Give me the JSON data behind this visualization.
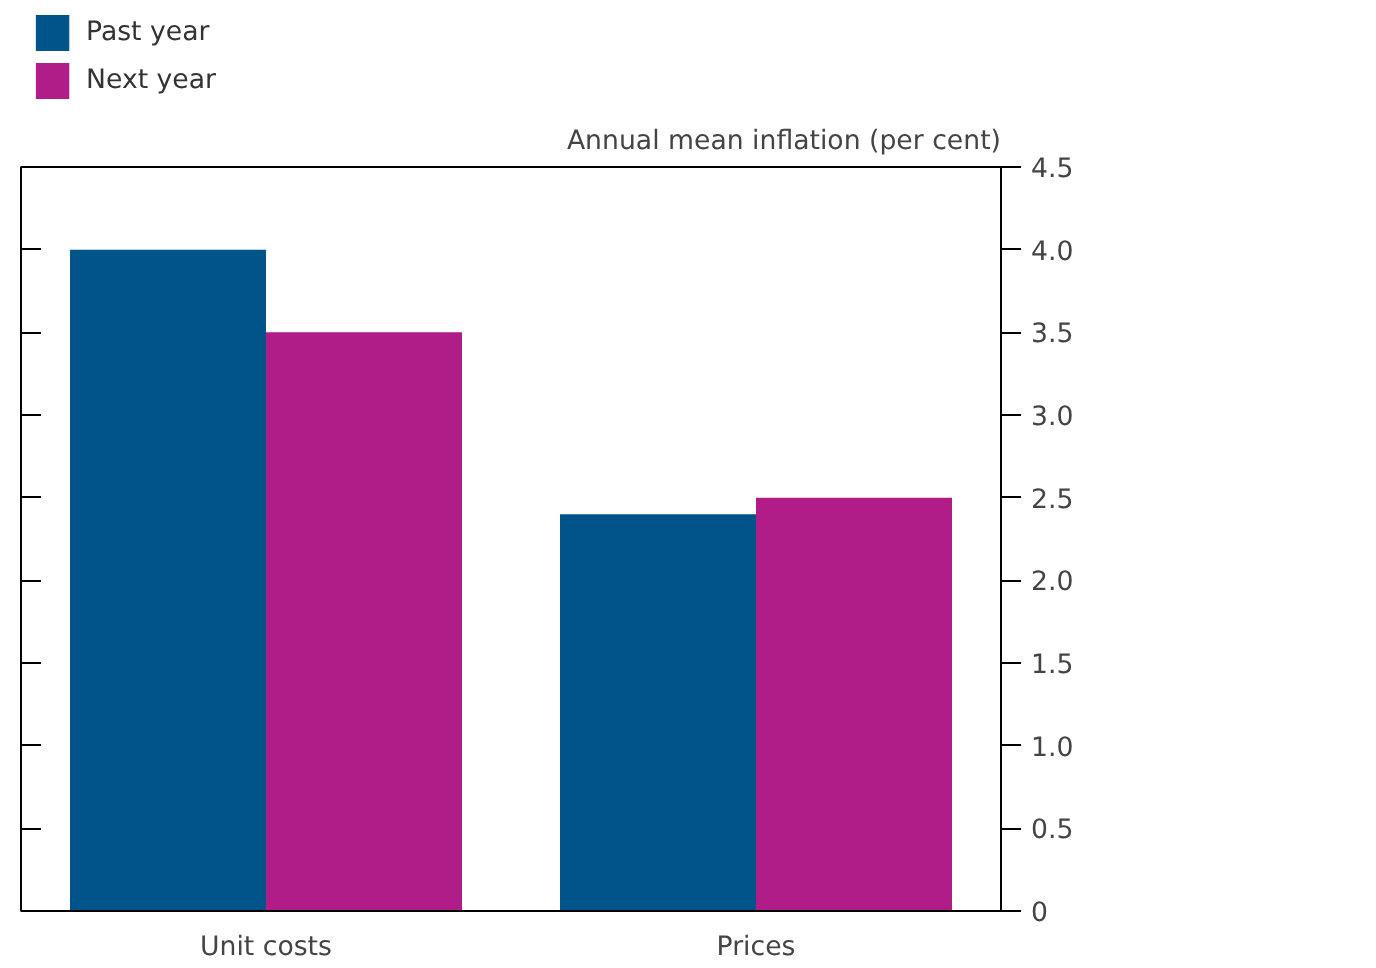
{
  "chart_data": {
    "type": "bar",
    "ylabel": "Annual mean inflation (per cent)",
    "categories": [
      "Unit costs",
      "Prices"
    ],
    "series": [
      {
        "name": "Past year",
        "color": "#00548a",
        "values": [
          4.0,
          2.4
        ]
      },
      {
        "name": "Next year",
        "color": "#b01c88",
        "values": [
          3.5,
          2.5
        ]
      }
    ],
    "ylim": [
      0,
      4.5
    ],
    "yticks": [
      0,
      0.5,
      {
        "value": 1,
        "label": "1.0"
      },
      1.5,
      {
        "value": 2,
        "label": "2.0"
      },
      2.5,
      {
        "value": 3,
        "label": "3.0"
      },
      3.5,
      {
        "value": 4,
        "label": "4.0"
      },
      4.5
    ],
    "grid": false,
    "legend": "top left"
  }
}
